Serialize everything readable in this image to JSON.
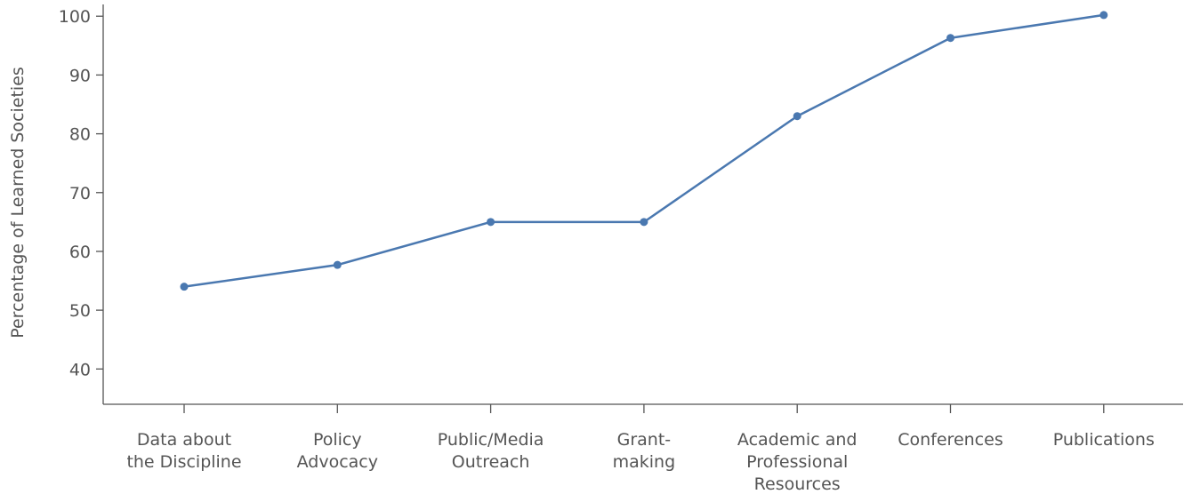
{
  "chart_data": {
    "type": "line",
    "title": "",
    "xlabel": "",
    "ylabel": "Percentage of Learned Societies",
    "ylim": [
      34,
      102
    ],
    "yticks": [
      40,
      50,
      60,
      70,
      80,
      90,
      100
    ],
    "categories": [
      [
        "Data about",
        "the Discipline"
      ],
      [
        "Policy",
        "Advocacy"
      ],
      [
        "Public/Media",
        "Outreach"
      ],
      [
        "Grant-",
        "making"
      ],
      [
        "Academic and",
        "Professional",
        "Resources"
      ],
      [
        "Conferences"
      ],
      [
        "Publications"
      ]
    ],
    "series": [
      {
        "values": [
          54,
          57.7,
          65,
          65,
          83,
          96.3,
          100.2
        ]
      }
    ],
    "grid": false,
    "colors": {
      "line": "#4a78b0",
      "axis": "#555555",
      "text": "#555555"
    }
  }
}
